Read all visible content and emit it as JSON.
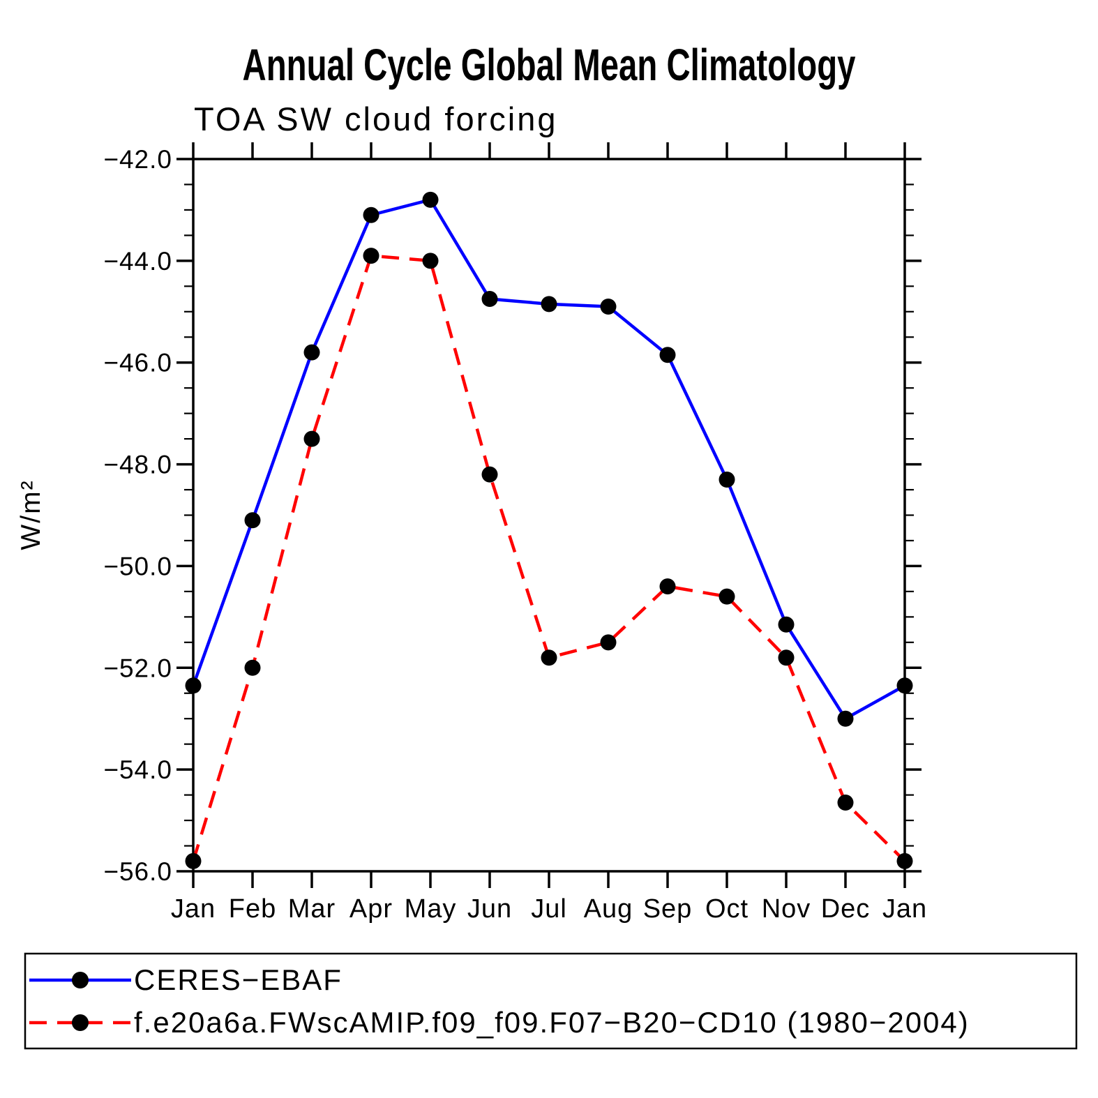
{
  "chart_data": {
    "type": "line",
    "title": "Annual Cycle Global Mean Climatology",
    "subtitle": "TOA SW cloud forcing",
    "ylabel": "W/m²",
    "xlabel": "",
    "categories": [
      "Jan",
      "Feb",
      "Mar",
      "Apr",
      "May",
      "Jun",
      "Jul",
      "Aug",
      "Sep",
      "Oct",
      "Nov",
      "Dec",
      "Jan"
    ],
    "ylim": [
      -56.0,
      -42.0
    ],
    "ytick_interval_major": 2.0,
    "ytick_interval_minor": 0.5,
    "ytick_labels": [
      "−42.0",
      "−44.0",
      "−46.0",
      "−48.0",
      "−50.0",
      "−52.0",
      "−54.0",
      "−56.0"
    ],
    "grid": false,
    "legend_position": "bottom-left",
    "frame_color": "#000000",
    "series": [
      {
        "name": "CERES−EBAF",
        "color": "#0000ff",
        "line_style": "solid",
        "marker": "filled-circle",
        "marker_color": "#000000",
        "values": [
          -52.35,
          -49.1,
          -45.8,
          -43.1,
          -42.8,
          -44.75,
          -44.85,
          -44.9,
          -45.85,
          -48.3,
          -51.15,
          -53.0,
          -52.35
        ]
      },
      {
        "name": "f.e20a6a.FWscAMIP.f09_f09.F07−B20−CD10 (1980−2004)",
        "color": "#ff0000",
        "line_style": "dashed",
        "marker": "filled-circle",
        "marker_color": "#000000",
        "values": [
          -55.8,
          -52.0,
          -47.5,
          -43.9,
          -44.0,
          -48.2,
          -51.8,
          -51.5,
          -50.4,
          -50.6,
          -51.8,
          -54.65,
          -55.8
        ]
      }
    ]
  }
}
